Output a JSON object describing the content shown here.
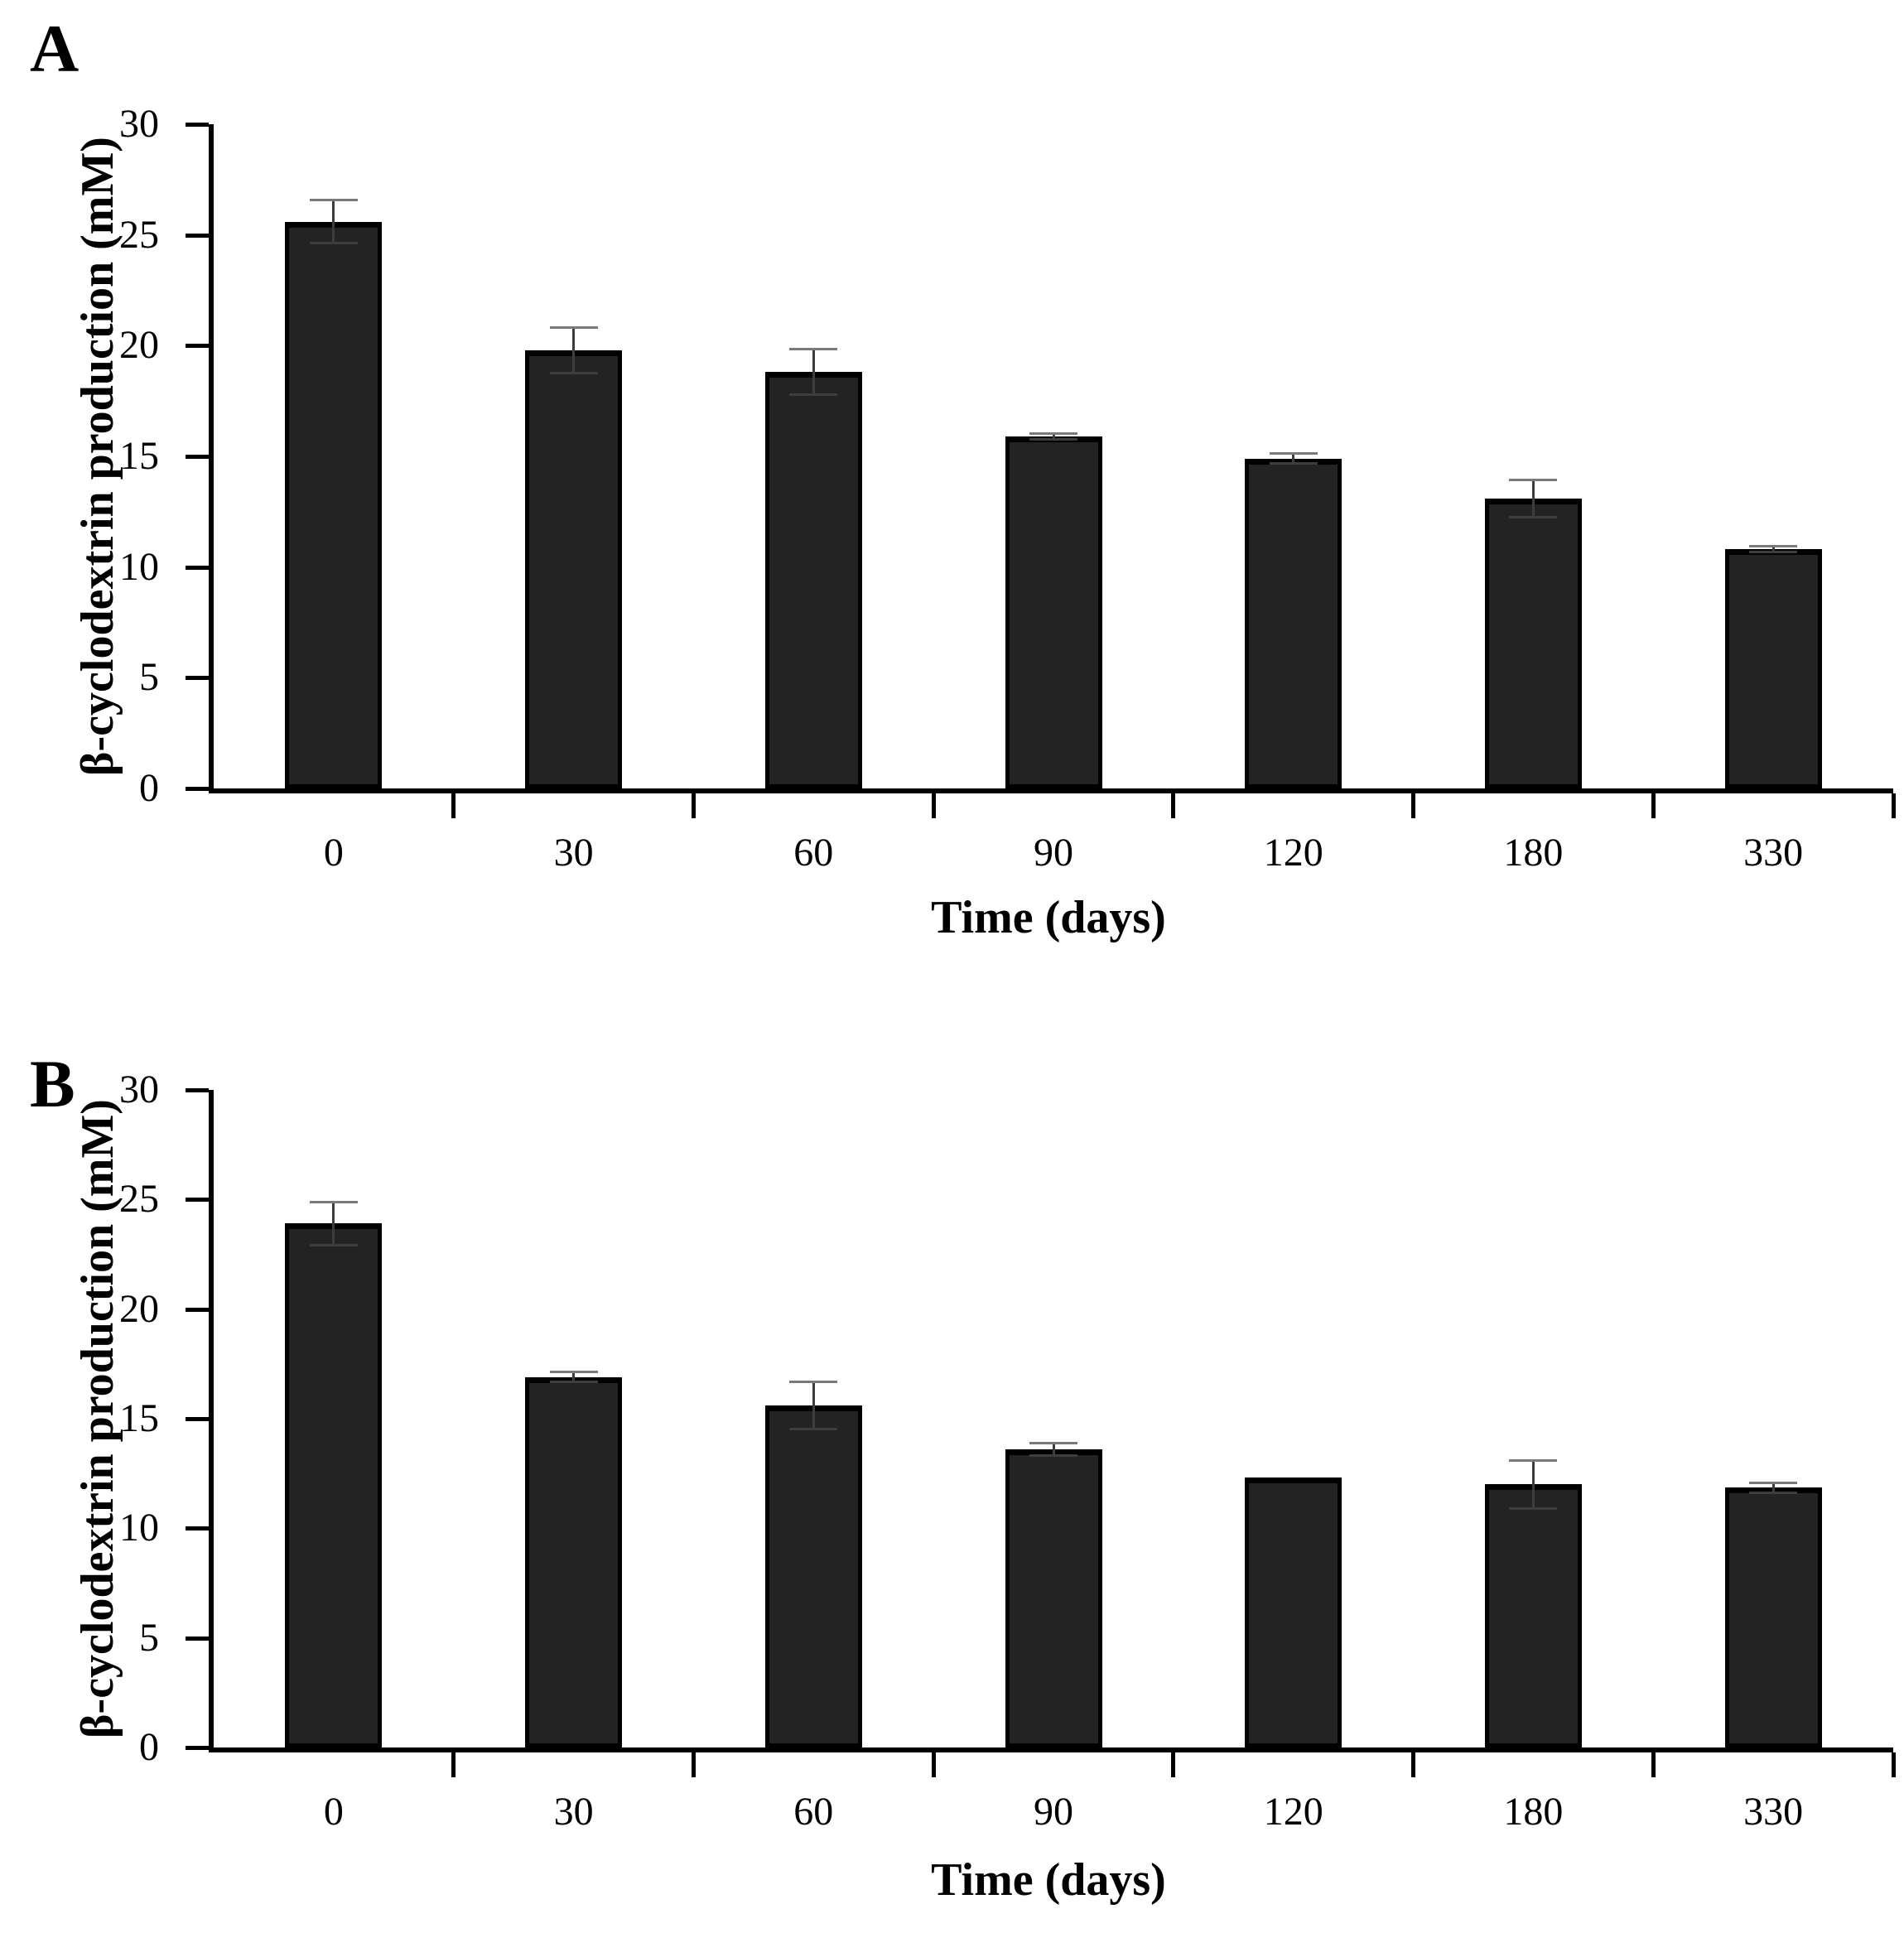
{
  "figure": {
    "background": "#ffffff",
    "axis_color": "#000000",
    "bar_fill": "#232323",
    "bar_border": "#000000",
    "error_color": "#3d3d3d",
    "error_cap_color": "#7a7a7a"
  },
  "chart_data": [
    {
      "type": "bar",
      "panel_label": "A",
      "categories": [
        "0",
        "30",
        "60",
        "90",
        "120",
        "180",
        "330"
      ],
      "values": [
        25.6,
        19.8,
        18.8,
        15.9,
        14.9,
        13.1,
        10.8
      ],
      "errors": [
        1.0,
        1.05,
        1.05,
        0.15,
        0.25,
        0.85,
        0.15
      ],
      "xlabel": "Time (days)",
      "ylabel": "β-cyclodextrin production (mM)",
      "ylim": [
        0,
        30
      ],
      "yticks": [
        "0",
        "5",
        "10",
        "15",
        "20",
        "25",
        "30"
      ],
      "grid": false,
      "legend": null,
      "series_color": "#232323"
    },
    {
      "type": "bar",
      "panel_label": "B",
      "categories": [
        "0",
        "30",
        "60",
        "90",
        "120",
        "180",
        "330"
      ],
      "values": [
        23.9,
        16.9,
        15.6,
        13.6,
        12.3,
        12.0,
        11.85
      ],
      "errors": [
        1.0,
        0.25,
        1.1,
        0.3,
        0,
        1.1,
        0.25
      ],
      "xlabel": "Time (days)",
      "ylabel": "β-cyclodextrin production (mM)",
      "ylim": [
        0,
        30
      ],
      "yticks": [
        "0",
        "5",
        "10",
        "15",
        "20",
        "25",
        "30"
      ],
      "grid": false,
      "legend": null,
      "series_color": "#232323"
    }
  ]
}
